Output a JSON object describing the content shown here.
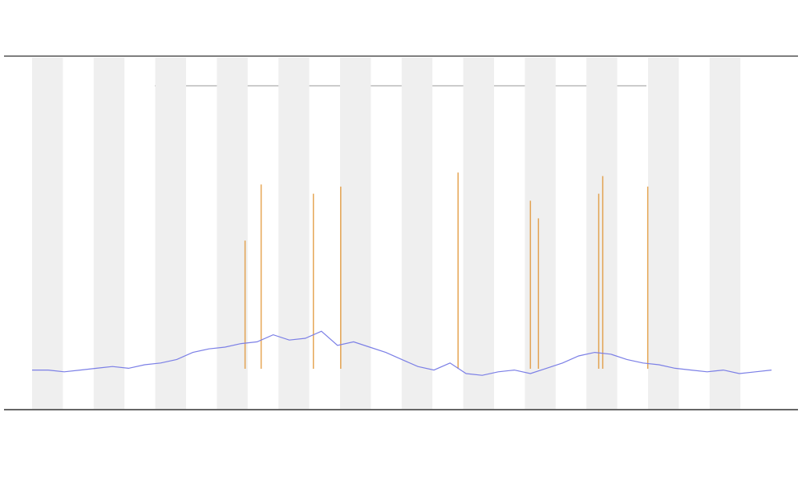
{
  "chart_data": {
    "type": "line",
    "x": [
      0,
      2,
      4,
      6,
      8,
      10,
      12,
      14,
      16,
      18,
      20,
      22,
      24,
      26,
      28,
      30,
      32,
      34,
      36,
      38,
      40,
      42,
      44,
      46,
      48,
      50,
      52,
      54,
      56,
      58,
      60,
      62,
      64,
      66,
      68,
      70,
      72,
      74,
      76,
      78,
      80,
      82,
      84,
      86,
      88,
      90,
      92
    ],
    "values": [
      11,
      11,
      10.5,
      11,
      11.5,
      12,
      11.5,
      12.5,
      13,
      14,
      16,
      17,
      17.5,
      18.5,
      19,
      21,
      19.5,
      20,
      22,
      18,
      19,
      17.5,
      16,
      14,
      12,
      11,
      13,
      10,
      9.5,
      10.5,
      11,
      10,
      11.5,
      13,
      15,
      16,
      15.5,
      14,
      13,
      12.5,
      11.5,
      11,
      10.5,
      11,
      10,
      10.5,
      11
    ],
    "color": "#7b7fe6",
    "spikes": {
      "color": "#e0902a",
      "x": [
        26.5,
        28.5,
        35,
        38.4,
        53,
        62,
        63,
        70.5,
        71,
        76.6
      ],
      "values": [
        47.7,
        63.6,
        61,
        63,
        67,
        59,
        54,
        61,
        66,
        63
      ]
    },
    "xlim": [
      0,
      92
    ],
    "ylim": [
      0,
      100
    ]
  }
}
